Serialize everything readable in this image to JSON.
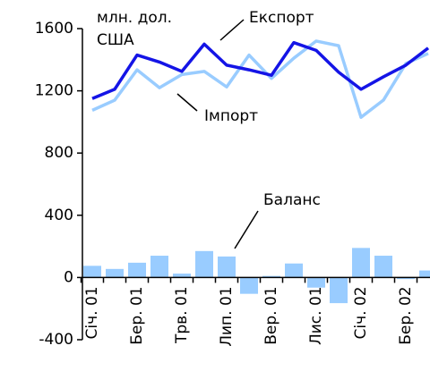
{
  "chart_data": {
    "type": "bar_line",
    "unit_label": [
      "млн. дол.",
      "США"
    ],
    "annotations": {
      "export": "Експорт",
      "import": "Імпорт",
      "balance": "Баланс"
    },
    "categories": [
      "Січ. 01",
      null,
      "Бер. 01",
      null,
      "Трв. 01",
      null,
      "Лип. 01",
      null,
      "Вер. 01",
      null,
      "Лис. 01",
      null,
      "Січ. 02",
      null,
      "Бер. 02",
      null
    ],
    "series": [
      {
        "name": "Експорт",
        "kind": "line",
        "color": "#1414e6",
        "values": [
          1150,
          1210,
          1430,
          1385,
          1325,
          1500,
          1365,
          1335,
          1300,
          1510,
          1460,
          1320,
          1210,
          1290,
          1365,
          1475
        ]
      },
      {
        "name": "Імпорт",
        "kind": "line",
        "color": "#99ccff",
        "values": [
          1075,
          1140,
          1335,
          1220,
          1305,
          1325,
          1225,
          1430,
          1280,
          1410,
          1520,
          1490,
          1030,
          1140,
          1375,
          1440
        ]
      },
      {
        "name": "Баланс",
        "kind": "bar",
        "color": "#99ccff",
        "values": [
          75,
          55,
          95,
          140,
          25,
          170,
          135,
          -105,
          10,
          90,
          -65,
          -165,
          190,
          140,
          -10,
          45
        ]
      }
    ],
    "ylim": [
      -400,
      1600
    ],
    "yticks": [
      -400,
      0,
      400,
      800,
      1200,
      1600
    ],
    "grid": false
  }
}
